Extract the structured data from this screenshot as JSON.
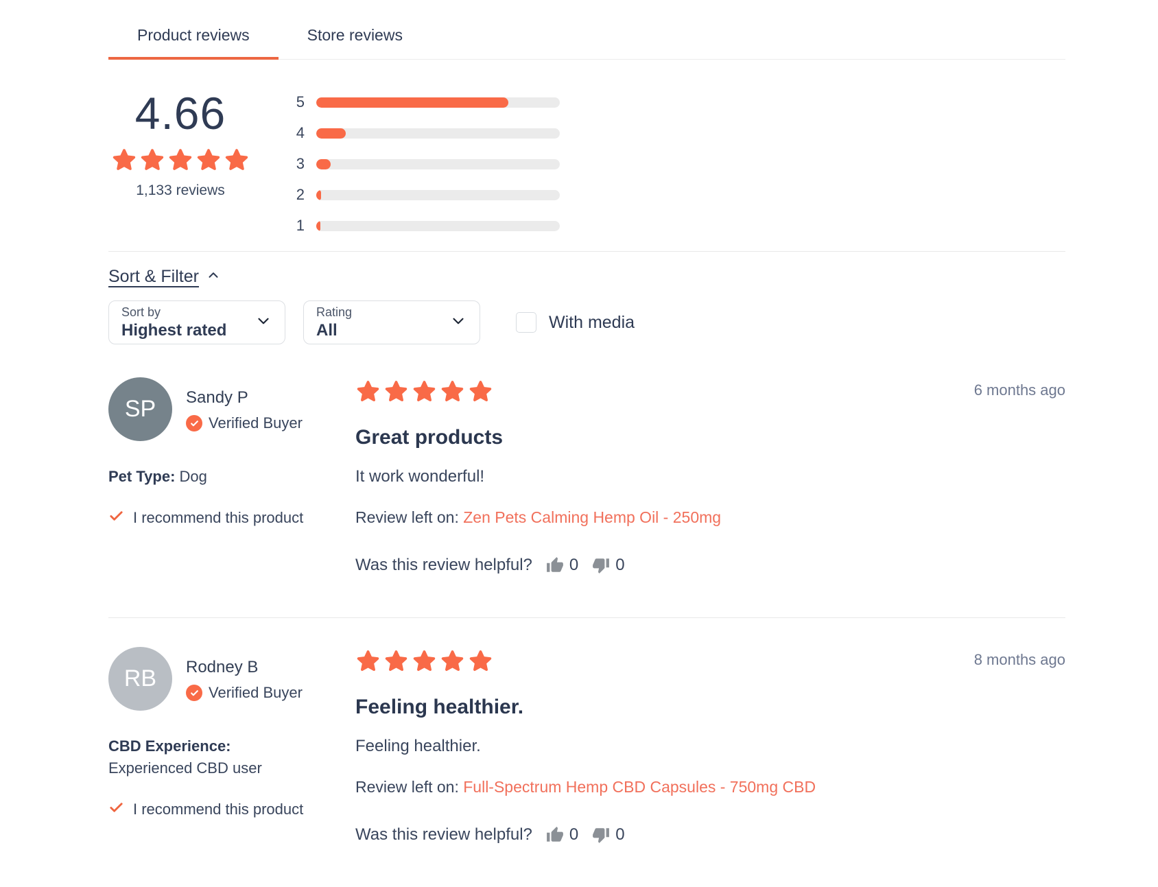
{
  "tabs": [
    {
      "label": "Product reviews"
    },
    {
      "label": "Store reviews"
    }
  ],
  "summary": {
    "score": "4.66",
    "star_count": 5,
    "reviews_count_label": "1,133 reviews",
    "distribution": [
      {
        "label": "5",
        "width": "79%"
      },
      {
        "label": "4",
        "width": "12%"
      },
      {
        "label": "3",
        "width": "6%"
      },
      {
        "label": "2",
        "width": "2%"
      },
      {
        "label": "1",
        "width": "1.5%"
      }
    ]
  },
  "filters": {
    "toggle_label": "Sort & Filter",
    "sort_by": {
      "label": "Sort by",
      "value": "Highest rated"
    },
    "rating": {
      "label": "Rating",
      "value": "All"
    },
    "with_media_label": "With media"
  },
  "reviews": [
    {
      "initials": "SP",
      "avatar_color": "#76838b",
      "name": "Sandy P",
      "verified_label": "Verified Buyer",
      "attribute_label": "Pet Type:",
      "attribute_value": " Dog",
      "recommend_label": "I recommend this product",
      "star_count": 5,
      "title": "Great products",
      "body": "It work wonderful!",
      "left_on_label": "Review left on: ",
      "product_link": "Zen Pets Calming Hemp Oil - 250mg",
      "helpful_label": "Was this review helpful?",
      "upvotes": "0",
      "downvotes": "0",
      "timestamp": "6 months ago"
    },
    {
      "initials": "RB",
      "avatar_color": "#b9bec4",
      "name": "Rodney B",
      "verified_label": "Verified Buyer",
      "attribute_label": "CBD Experience:",
      "attribute_value": " Experienced CBD user",
      "recommend_label": "I recommend this product",
      "star_count": 5,
      "title": "Feeling healthier.",
      "body": "Feeling healthier.",
      "left_on_label": "Review left on: ",
      "product_link": "Full-Spectrum Hemp CBD Capsules - 750mg CBD",
      "helpful_label": "Was this review helpful?",
      "upvotes": "0",
      "downvotes": "0",
      "timestamp": "8 months ago"
    }
  ],
  "colors": {
    "accent": "#f96a47",
    "link": "#f1705b"
  }
}
